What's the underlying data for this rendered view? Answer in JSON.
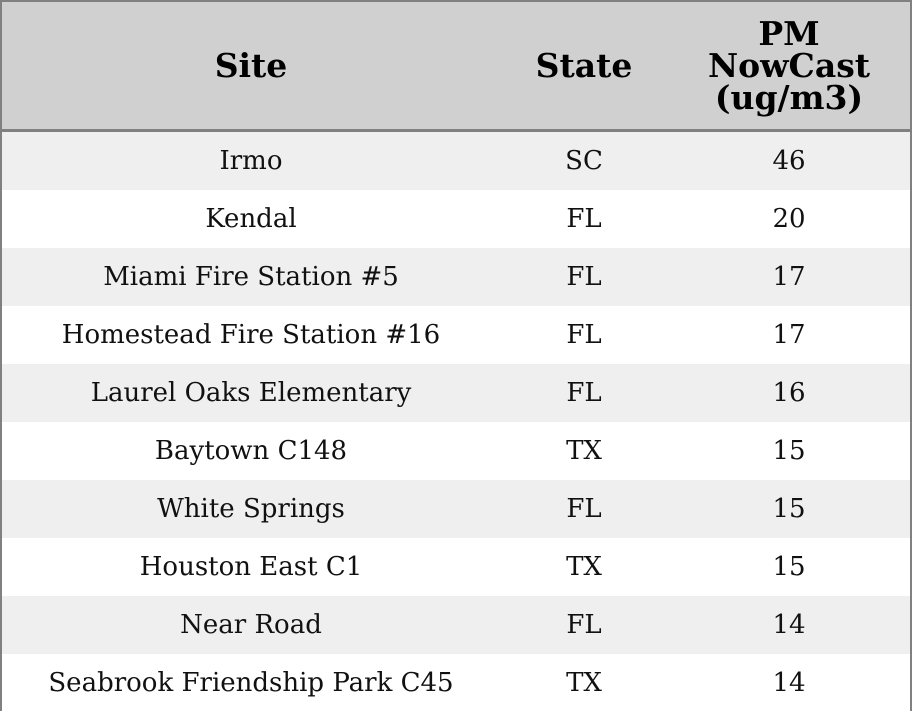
{
  "table": {
    "columns": [
      "Site",
      "State",
      "PM NowCast (ug/m3)"
    ],
    "rows": [
      [
        "Irmo",
        "SC",
        46
      ],
      [
        "Kendal",
        "FL",
        20
      ],
      [
        "Miami Fire Station #5",
        "FL",
        17
      ],
      [
        "Homestead Fire Station #16",
        "FL",
        17
      ],
      [
        "Laurel Oaks Elementary",
        "FL",
        16
      ],
      [
        "Baytown C148",
        "TX",
        15
      ],
      [
        "White Springs",
        "FL",
        15
      ],
      [
        "Houston East C1",
        "TX",
        15
      ],
      [
        "Near Road",
        "FL",
        14
      ],
      [
        "Seabrook Friendship Park C45",
        "TX",
        14
      ]
    ]
  }
}
